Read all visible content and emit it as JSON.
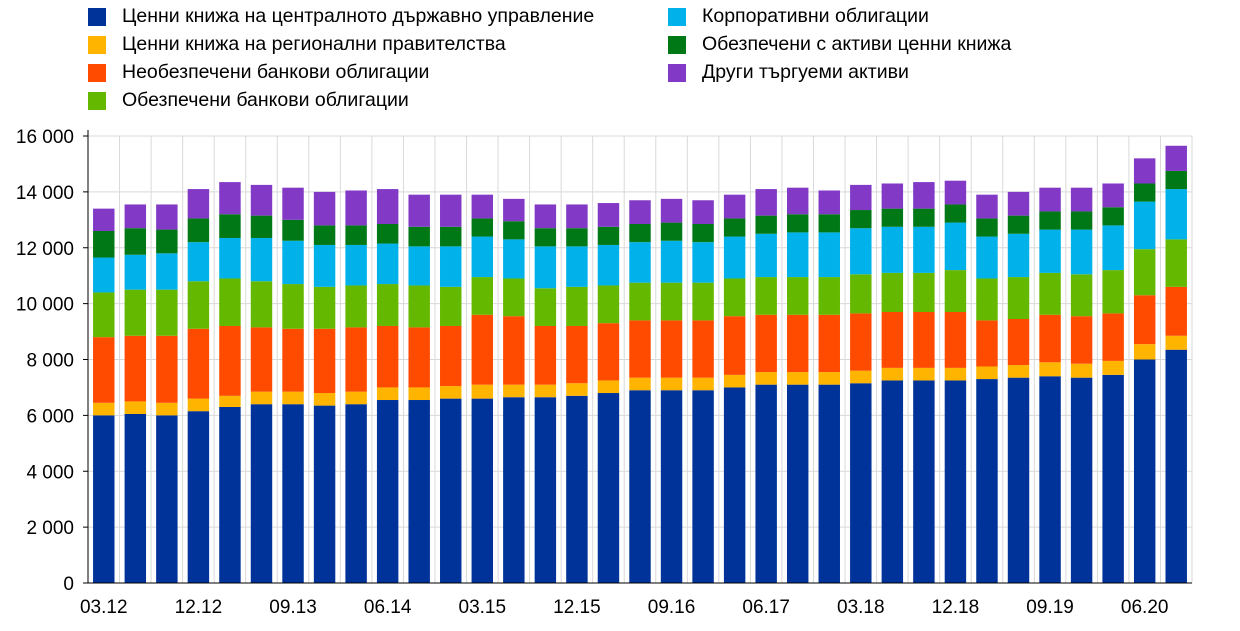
{
  "chart_data": {
    "type": "bar",
    "stacked": true,
    "title": "",
    "xlabel": "",
    "ylabel": "",
    "ylim": [
      0,
      16000
    ],
    "yticks": [
      0,
      2000,
      4000,
      6000,
      8000,
      10000,
      12000,
      14000,
      16000
    ],
    "ytick_labels": [
      "0",
      "2 000",
      "4 000",
      "6 000",
      "8 000",
      "10 000",
      "12 000",
      "14 000",
      "16 000"
    ],
    "grid": true,
    "legend_position": "top",
    "categories": [
      "03.12",
      "06.12",
      "09.12",
      "12.12",
      "03.13",
      "06.13",
      "09.13",
      "12.13",
      "03.14",
      "06.14",
      "09.14",
      "12.14",
      "03.15",
      "06.15",
      "09.15",
      "12.15",
      "03.16",
      "06.16",
      "09.16",
      "12.16",
      "03.17",
      "06.17",
      "09.17",
      "12.17",
      "03.18",
      "06.18",
      "09.18",
      "12.18",
      "03.19",
      "06.19",
      "09.19",
      "12.19",
      "03.20",
      "06.20",
      "09.20"
    ],
    "xtick_labels": [
      "03.12",
      "12.12",
      "09.13",
      "06.14",
      "03.15",
      "12.15",
      "09.16",
      "06.17",
      "03.18",
      "12.18",
      "09.19",
      "06.20"
    ],
    "series": [
      {
        "name": "Ценни книжа на централното държавно управление",
        "color": "#003399",
        "values": [
          6000,
          6050,
          6000,
          6150,
          6300,
          6400,
          6400,
          6350,
          6400,
          6550,
          6550,
          6600,
          6600,
          6650,
          6650,
          6700,
          6800,
          6900,
          6900,
          6900,
          7000,
          7100,
          7100,
          7100,
          7150,
          7250,
          7250,
          7250,
          7300,
          7350,
          7400,
          7350,
          7450,
          8000,
          8350
        ]
      },
      {
        "name": "Ценни книжа на регионални правителства",
        "color": "#FFB400",
        "values": [
          450,
          450,
          450,
          450,
          400,
          450,
          450,
          450,
          450,
          450,
          450,
          450,
          500,
          450,
          450,
          450,
          450,
          450,
          450,
          450,
          450,
          450,
          450,
          450,
          450,
          450,
          450,
          450,
          450,
          450,
          500,
          500,
          500,
          550,
          500
        ]
      },
      {
        "name": "Необезпечени банкови облигации",
        "color": "#FF4B00",
        "values": [
          2350,
          2350,
          2400,
          2500,
          2500,
          2300,
          2250,
          2300,
          2300,
          2200,
          2150,
          2150,
          2500,
          2450,
          2100,
          2050,
          2050,
          2050,
          2050,
          2050,
          2100,
          2050,
          2050,
          2050,
          2050,
          2000,
          2000,
          2000,
          1650,
          1650,
          1700,
          1700,
          1700,
          1750,
          1750
        ]
      },
      {
        "name": "Обезпечени банкови облигации",
        "color": "#65B800",
        "values": [
          1600,
          1650,
          1650,
          1700,
          1700,
          1650,
          1600,
          1500,
          1500,
          1500,
          1500,
          1400,
          1350,
          1350,
          1350,
          1400,
          1350,
          1350,
          1350,
          1350,
          1350,
          1350,
          1350,
          1350,
          1400,
          1400,
          1400,
          1500,
          1500,
          1500,
          1500,
          1500,
          1550,
          1650,
          1700
        ]
      },
      {
        "name": "Корпоративни облигации",
        "color": "#00B1EA",
        "values": [
          1250,
          1250,
          1300,
          1400,
          1450,
          1550,
          1550,
          1500,
          1450,
          1450,
          1400,
          1450,
          1450,
          1400,
          1500,
          1450,
          1450,
          1450,
          1500,
          1450,
          1500,
          1550,
          1600,
          1600,
          1650,
          1650,
          1650,
          1700,
          1500,
          1550,
          1550,
          1600,
          1600,
          1700,
          1800
        ]
      },
      {
        "name": "Обезпечени с активи ценни книжа",
        "color": "#007816",
        "values": [
          950,
          950,
          850,
          850,
          850,
          800,
          750,
          700,
          700,
          700,
          700,
          700,
          650,
          650,
          650,
          650,
          650,
          650,
          650,
          650,
          650,
          650,
          650,
          650,
          650,
          650,
          650,
          650,
          650,
          650,
          650,
          650,
          650,
          650,
          650
        ]
      },
      {
        "name": "Други търгуеми активи",
        "color": "#8139C6",
        "values": [
          800,
          850,
          900,
          1050,
          1150,
          1100,
          1150,
          1200,
          1250,
          1250,
          1150,
          1150,
          850,
          800,
          850,
          850,
          850,
          850,
          850,
          850,
          850,
          950,
          950,
          850,
          900,
          900,
          950,
          850,
          850,
          850,
          850,
          850,
          850,
          900,
          900
        ]
      }
    ]
  }
}
